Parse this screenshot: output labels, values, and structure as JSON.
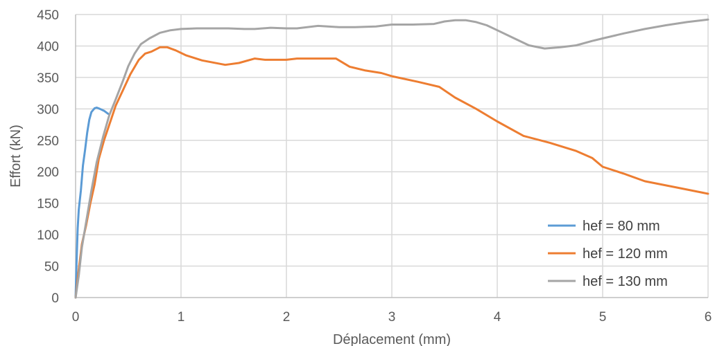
{
  "chart_data": {
    "type": "line",
    "title": "",
    "xlabel": "Déplacement (mm)",
    "ylabel": "Effort (kN)",
    "xlim": [
      0,
      6
    ],
    "ylim": [
      0,
      450
    ],
    "x_ticks": [
      "0",
      "1",
      "2",
      "3",
      "4",
      "5",
      "6"
    ],
    "y_ticks": [
      "0",
      "50",
      "100",
      "150",
      "200",
      "250",
      "300",
      "350",
      "400",
      "450"
    ],
    "grid": true,
    "legend_position": "bottom-right",
    "series": [
      {
        "name": "hef = 80 mm",
        "color": "#5B9BD5",
        "points": [
          [
            0,
            0
          ],
          [
            0.01,
            60
          ],
          [
            0.02,
            110
          ],
          [
            0.03,
            140
          ],
          [
            0.05,
            170
          ],
          [
            0.07,
            210
          ],
          [
            0.09,
            235
          ],
          [
            0.11,
            262
          ],
          [
            0.13,
            283
          ],
          [
            0.15,
            295
          ],
          [
            0.18,
            301
          ],
          [
            0.2,
            302
          ],
          [
            0.23,
            300
          ],
          [
            0.27,
            297
          ],
          [
            0.31,
            292
          ]
        ]
      },
      {
        "name": "hef = 120 mm",
        "color": "#ED7D31",
        "points": [
          [
            0,
            0
          ],
          [
            0.03,
            45
          ],
          [
            0.06,
            85
          ],
          [
            0.1,
            115
          ],
          [
            0.14,
            150
          ],
          [
            0.18,
            180
          ],
          [
            0.22,
            220
          ],
          [
            0.27,
            250
          ],
          [
            0.33,
            280
          ],
          [
            0.38,
            305
          ],
          [
            0.45,
            330
          ],
          [
            0.52,
            355
          ],
          [
            0.6,
            378
          ],
          [
            0.66,
            388
          ],
          [
            0.72,
            391
          ],
          [
            0.8,
            398
          ],
          [
            0.87,
            398
          ],
          [
            0.95,
            393
          ],
          [
            1.05,
            385
          ],
          [
            1.2,
            377
          ],
          [
            1.42,
            370
          ],
          [
            1.55,
            373
          ],
          [
            1.7,
            380
          ],
          [
            1.8,
            378
          ],
          [
            2.0,
            378
          ],
          [
            2.1,
            380
          ],
          [
            2.3,
            380
          ],
          [
            2.47,
            380
          ],
          [
            2.6,
            367
          ],
          [
            2.75,
            361
          ],
          [
            2.9,
            357
          ],
          [
            3.0,
            352
          ],
          [
            3.25,
            343
          ],
          [
            3.45,
            335
          ],
          [
            3.6,
            318
          ],
          [
            3.8,
            300
          ],
          [
            4.0,
            280
          ],
          [
            4.25,
            257
          ],
          [
            4.5,
            246
          ],
          [
            4.75,
            233
          ],
          [
            4.9,
            222
          ],
          [
            5.0,
            208
          ],
          [
            5.2,
            197
          ],
          [
            5.4,
            185
          ],
          [
            5.7,
            175
          ],
          [
            6.0,
            165
          ]
        ]
      },
      {
        "name": "hef = 130 mm",
        "color": "#A5A5A5",
        "points": [
          [
            0,
            0
          ],
          [
            0.03,
            35
          ],
          [
            0.06,
            80
          ],
          [
            0.1,
            120
          ],
          [
            0.15,
            170
          ],
          [
            0.2,
            215
          ],
          [
            0.26,
            255
          ],
          [
            0.32,
            290
          ],
          [
            0.38,
            315
          ],
          [
            0.45,
            345
          ],
          [
            0.5,
            368
          ],
          [
            0.56,
            388
          ],
          [
            0.62,
            403
          ],
          [
            0.7,
            412
          ],
          [
            0.8,
            421
          ],
          [
            0.9,
            425
          ],
          [
            1.0,
            427
          ],
          [
            1.15,
            428
          ],
          [
            1.3,
            428
          ],
          [
            1.45,
            428
          ],
          [
            1.6,
            427
          ],
          [
            1.7,
            427
          ],
          [
            1.85,
            429
          ],
          [
            2.0,
            428
          ],
          [
            2.1,
            428
          ],
          [
            2.3,
            432
          ],
          [
            2.5,
            430
          ],
          [
            2.65,
            430
          ],
          [
            2.85,
            431
          ],
          [
            3.0,
            434
          ],
          [
            3.2,
            434
          ],
          [
            3.4,
            435
          ],
          [
            3.5,
            439
          ],
          [
            3.6,
            441
          ],
          [
            3.7,
            441
          ],
          [
            3.8,
            438
          ],
          [
            3.9,
            433
          ],
          [
            4.0,
            425
          ],
          [
            4.15,
            413
          ],
          [
            4.3,
            401
          ],
          [
            4.45,
            396
          ],
          [
            4.6,
            398
          ],
          [
            4.75,
            401
          ],
          [
            4.9,
            408
          ],
          [
            5.0,
            412
          ],
          [
            5.2,
            420
          ],
          [
            5.4,
            427
          ],
          [
            5.6,
            433
          ],
          [
            5.8,
            438
          ],
          [
            6.0,
            442
          ]
        ]
      }
    ]
  }
}
